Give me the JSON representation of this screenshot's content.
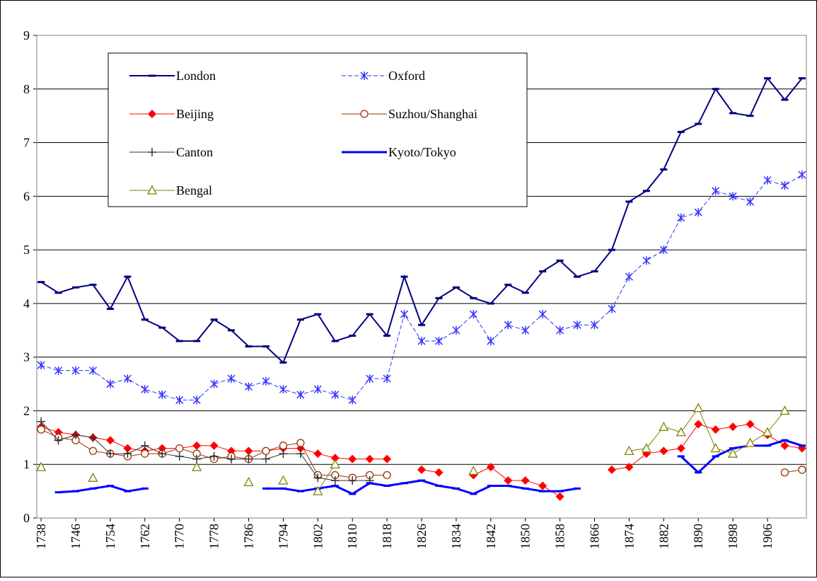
{
  "chart_data": {
    "type": "line",
    "x": [
      1738,
      1742,
      1746,
      1750,
      1754,
      1758,
      1762,
      1766,
      1770,
      1774,
      1778,
      1782,
      1786,
      1790,
      1794,
      1798,
      1802,
      1806,
      1810,
      1814,
      1818,
      1822,
      1826,
      1830,
      1834,
      1838,
      1842,
      1846,
      1850,
      1854,
      1858,
      1862,
      1866,
      1870,
      1874,
      1878,
      1882,
      1886,
      1890,
      1894,
      1898,
      1902,
      1906,
      1910,
      1914
    ],
    "xlim": [
      1737,
      1915
    ],
    "xticks": [
      1738,
      1746,
      1754,
      1762,
      1770,
      1778,
      1786,
      1794,
      1802,
      1810,
      1818,
      1826,
      1834,
      1842,
      1850,
      1858,
      1866,
      1874,
      1882,
      1890,
      1898,
      1906
    ],
    "ylim": [
      0,
      9
    ],
    "yticks": [
      0,
      1,
      2,
      3,
      4,
      5,
      6,
      7,
      8,
      9
    ],
    "grid": true,
    "series": [
      {
        "name": "London",
        "color": "#000080",
        "marker": "dash",
        "width": 2,
        "values": [
          4.4,
          4.2,
          4.3,
          4.35,
          3.9,
          4.5,
          3.7,
          3.55,
          3.3,
          3.3,
          3.7,
          3.5,
          3.2,
          3.2,
          2.9,
          3.7,
          3.8,
          3.3,
          3.4,
          3.8,
          3.4,
          4.5,
          3.6,
          4.1,
          4.3,
          4.1,
          4.0,
          4.35,
          4.2,
          4.6,
          4.8,
          4.5,
          4.6,
          5.0,
          5.9,
          6.1,
          6.5,
          7.2,
          7.35,
          8.0,
          7.55,
          7.5,
          8.2,
          7.8,
          8.2
        ]
      },
      {
        "name": "Oxford",
        "color": "#3333ff",
        "marker": "star",
        "width": 1,
        "dash": true,
        "values": [
          2.85,
          2.75,
          2.75,
          2.75,
          2.5,
          2.6,
          2.4,
          2.3,
          2.2,
          2.2,
          2.5,
          2.6,
          2.45,
          2.55,
          2.4,
          2.3,
          2.4,
          2.3,
          2.2,
          2.6,
          2.6,
          3.8,
          3.3,
          3.3,
          3.5,
          3.8,
          3.3,
          3.6,
          3.5,
          3.8,
          3.5,
          3.6,
          3.6,
          3.9,
          4.5,
          4.8,
          5.0,
          5.6,
          5.7,
          6.1,
          6.0,
          5.9,
          6.3,
          6.2,
          6.4
        ]
      },
      {
        "name": "Beijing",
        "color": "#ff0000",
        "marker": "diamond",
        "width": 1,
        "values": [
          1.7,
          1.6,
          1.55,
          1.5,
          1.45,
          1.3,
          1.25,
          1.3,
          1.3,
          1.35,
          1.35,
          1.25,
          1.25,
          1.25,
          1.3,
          1.3,
          1.2,
          1.12,
          1.1,
          1.1,
          1.1,
          null,
          0.9,
          0.85,
          null,
          0.8,
          0.95,
          0.7,
          0.7,
          0.6,
          0.4,
          null,
          null,
          0.9,
          0.95,
          1.2,
          1.25,
          1.3,
          1.75,
          1.65,
          1.7,
          1.75,
          1.55,
          1.35,
          1.3
        ]
      },
      {
        "name": "Suzhou/Shanghai",
        "color": "#993300",
        "marker": "circle",
        "width": 1,
        "values": [
          1.65,
          1.5,
          1.45,
          1.25,
          1.2,
          1.15,
          1.2,
          1.2,
          1.3,
          1.2,
          1.1,
          1.15,
          1.1,
          1.25,
          1.35,
          1.4,
          0.8,
          0.8,
          0.75,
          0.8,
          0.8,
          null,
          null,
          null,
          null,
          null,
          null,
          null,
          null,
          null,
          null,
          null,
          null,
          null,
          null,
          null,
          null,
          null,
          null,
          null,
          null,
          null,
          null,
          0.85,
          0.9
        ]
      },
      {
        "name": "Canton",
        "color": "#333333",
        "marker": "plus",
        "width": 1,
        "values": [
          1.8,
          1.45,
          1.55,
          1.5,
          1.2,
          1.2,
          1.35,
          1.2,
          1.15,
          1.1,
          1.15,
          1.1,
          1.1,
          1.1,
          1.2,
          1.2,
          0.75,
          0.7,
          0.7,
          0.7,
          null,
          null,
          null,
          null,
          null,
          null,
          null,
          null,
          null,
          null,
          null,
          null,
          null,
          null,
          null,
          null,
          null,
          null,
          null,
          null,
          null,
          null,
          null,
          null,
          null
        ]
      },
      {
        "name": "Kyoto/Tokyo",
        "color": "#0000ff",
        "marker": "dash",
        "width": 3,
        "values": [
          null,
          0.48,
          0.5,
          0.55,
          0.6,
          0.5,
          0.55,
          null,
          null,
          null,
          null,
          null,
          null,
          0.55,
          0.55,
          0.5,
          0.55,
          0.6,
          0.45,
          0.65,
          0.6,
          0.65,
          0.7,
          0.6,
          0.55,
          0.45,
          0.6,
          0.6,
          0.55,
          0.5,
          0.5,
          0.55,
          null,
          null,
          null,
          null,
          null,
          1.15,
          0.85,
          1.15,
          1.3,
          1.35,
          1.35,
          1.45,
          1.35
        ]
      },
      {
        "name": "Bengal",
        "color": "#808000",
        "marker": "triangle",
        "width": 1,
        "values": [
          0.95,
          null,
          null,
          0.75,
          null,
          null,
          null,
          null,
          null,
          0.95,
          null,
          null,
          0.67,
          null,
          0.7,
          null,
          0.5,
          1.0,
          null,
          null,
          null,
          null,
          null,
          null,
          null,
          0.88,
          null,
          null,
          null,
          null,
          null,
          null,
          null,
          null,
          1.25,
          1.3,
          1.7,
          1.6,
          2.05,
          1.3,
          1.2,
          1.4,
          1.6,
          2.0,
          null
        ]
      }
    ]
  }
}
